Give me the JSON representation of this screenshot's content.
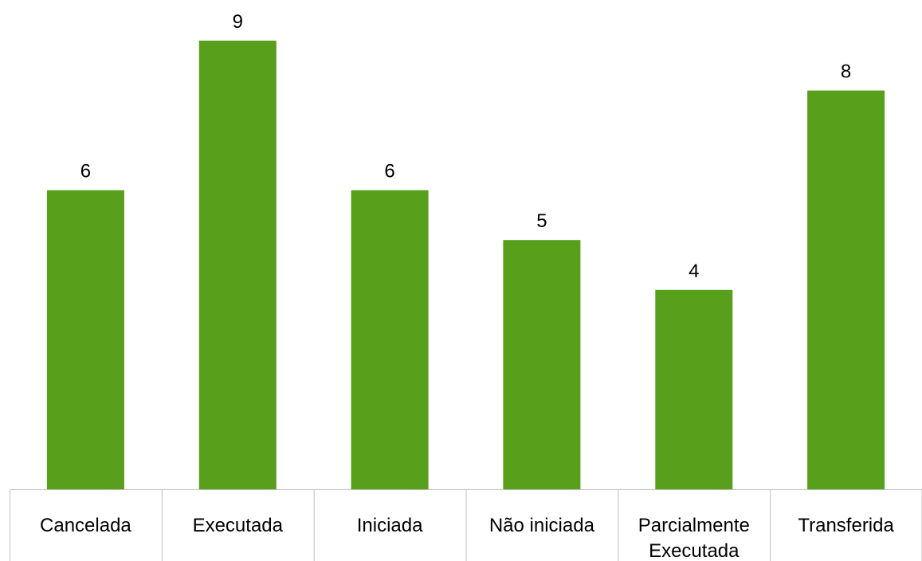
{
  "chart_data": {
    "type": "bar",
    "categories": [
      "Cancelada",
      "Executada",
      "Iniciada",
      "Não iniciada",
      "Parcialmente Executada",
      "Transferida"
    ],
    "category_lines": [
      [
        "Cancelada"
      ],
      [
        "Executada"
      ],
      [
        "Iniciada"
      ],
      [
        "Não iniciada"
      ],
      [
        "Parcialmente",
        "Executada"
      ],
      [
        "Transferida"
      ]
    ],
    "values": [
      6,
      9,
      6,
      5,
      4,
      8
    ],
    "data_labels": [
      "6",
      "9",
      "6",
      "5",
      "4",
      "8"
    ],
    "ylim": [
      0,
      9
    ],
    "grid": false,
    "legend": "none",
    "bar_color": "#589f1c",
    "axis_color": "#bfbfbf",
    "title": "",
    "xlabel": "",
    "ylabel": ""
  }
}
